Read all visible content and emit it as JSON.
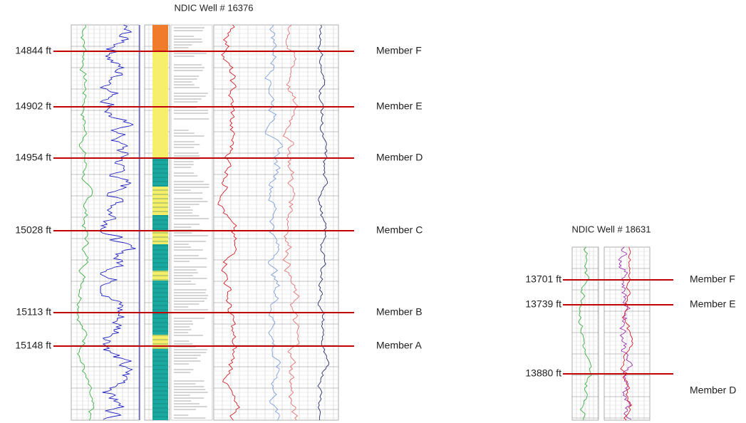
{
  "wells": [
    {
      "title": "NDIC Well # 16376",
      "markers": [
        {
          "depth": "14844 ft",
          "member": "Member F"
        },
        {
          "depth": "14902 ft",
          "member": "Member E"
        },
        {
          "depth": "14954 ft",
          "member": "Member D"
        },
        {
          "depth": "15028 ft",
          "member": "Member C"
        },
        {
          "depth": "15113 ft",
          "member": "Member B"
        },
        {
          "depth": "15148 ft",
          "member": "Member A"
        }
      ]
    },
    {
      "title": "NDIC Well # 18631",
      "markers": [
        {
          "depth": "13701 ft",
          "member": "Member F"
        },
        {
          "depth": "13739 ft",
          "member": "Member E"
        },
        {
          "depth": "13880 ft",
          "member": "Member D"
        }
      ]
    }
  ]
}
